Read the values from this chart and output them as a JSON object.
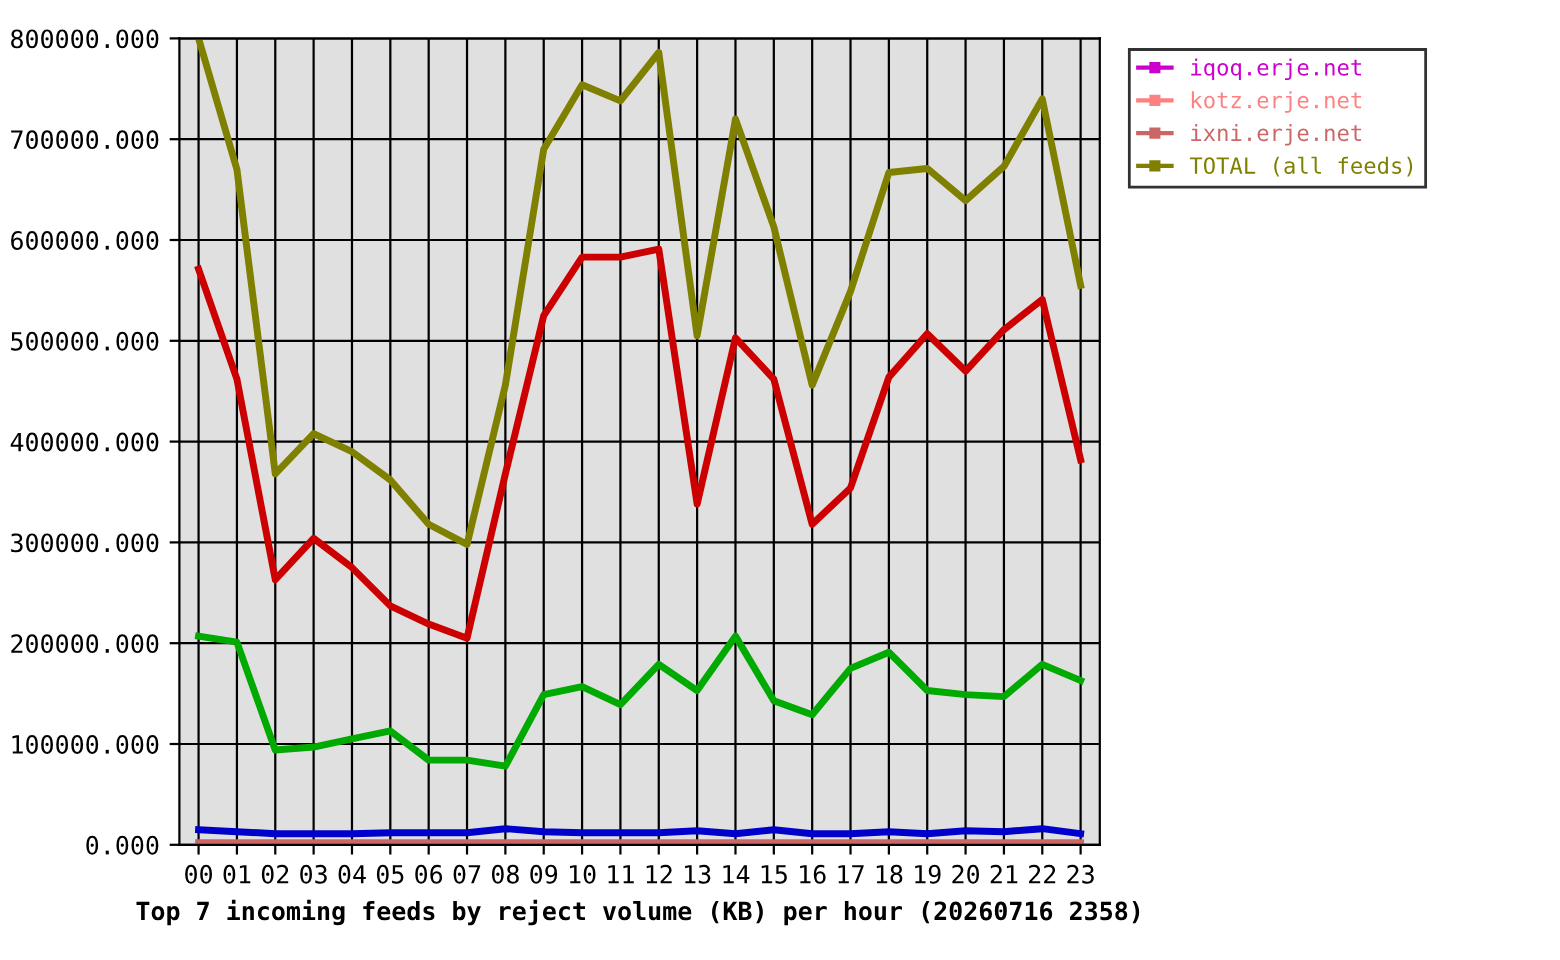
{
  "chart_data": {
    "type": "line",
    "xlabel": "Top 7 incoming feeds by reject volume (KB) per hour (20260716 2358)",
    "categories": [
      "00",
      "01",
      "02",
      "03",
      "04",
      "05",
      "06",
      "07",
      "08",
      "09",
      "10",
      "11",
      "12",
      "13",
      "14",
      "15",
      "16",
      "17",
      "18",
      "19",
      "20",
      "21",
      "22",
      "23"
    ],
    "series": [
      {
        "color": "#cc0000",
        "values": [
          571000,
          462000,
          263000,
          304000,
          275000,
          237000,
          219000,
          205000,
          368000,
          525000,
          583000,
          583000,
          591000,
          338000,
          503000,
          462000,
          318000,
          354000,
          464000,
          507000,
          470000,
          511000,
          541000,
          382000
        ]
      },
      {
        "color": "#00aa00",
        "values": [
          207000,
          201000,
          94000,
          97000,
          105000,
          113000,
          84000,
          84000,
          78000,
          149000,
          157000,
          139000,
          179000,
          153000,
          207000,
          143000,
          129000,
          175000,
          191000,
          153000,
          149000,
          147000,
          179000,
          163000
        ]
      },
      {
        "color": "#0000cc",
        "values": [
          15000,
          13000,
          11000,
          11000,
          11000,
          12000,
          12000,
          12000,
          16000,
          13000,
          12000,
          12000,
          12000,
          14000,
          11000,
          15000,
          11000,
          11000,
          13000,
          11000,
          14000,
          13000,
          16000,
          11000
        ]
      },
      {
        "name": "iqoq.erje.net",
        "color": "#cc00cc",
        "values": [
          null,
          null,
          null,
          null,
          null,
          null,
          null,
          null,
          null,
          null,
          null,
          null,
          null,
          null,
          null,
          null,
          null,
          null,
          null,
          null,
          null,
          null,
          null,
          null
        ]
      },
      {
        "name": "kotz.erje.net",
        "color": "#ff8080",
        "values": [
          null,
          null,
          null,
          null,
          null,
          null,
          null,
          null,
          null,
          null,
          null,
          null,
          null,
          null,
          null,
          null,
          null,
          null,
          null,
          null,
          null,
          null,
          null,
          null
        ]
      },
      {
        "color": "#ff8000",
        "values": [
          null,
          null,
          null,
          null,
          null,
          null,
          null,
          null,
          null,
          null,
          null,
          null,
          null,
          null,
          null,
          null,
          null,
          null,
          null,
          null,
          null,
          null,
          null,
          null
        ]
      },
      {
        "name": "ixni.erje.net",
        "color": "#cc6666",
        "values": [
          2000,
          2000,
          2000,
          2000,
          2000,
          2000,
          2000,
          2000,
          2000,
          2000,
          2000,
          2000,
          2000,
          2000,
          2000,
          2000,
          2000,
          2000,
          2000,
          2000,
          2000,
          2000,
          2000,
          2000
        ]
      },
      {
        "name": "TOTAL (all feeds)",
        "color": "#808000",
        "values": [
          800000,
          670000,
          368000,
          408000,
          390000,
          362000,
          318000,
          298000,
          456000,
          690000,
          754000,
          738000,
          786000,
          505000,
          720000,
          613000,
          456000,
          549000,
          667000,
          671000,
          639000,
          673000,
          740000,
          555000
        ]
      }
    ],
    "ylim": [
      0,
      800000
    ],
    "yticks": [
      {
        "value": 0,
        "label": "0.000"
      },
      {
        "value": 100000,
        "label": "100000.000"
      },
      {
        "value": 200000,
        "label": "200000.000"
      },
      {
        "value": 300000,
        "label": "300000.000"
      },
      {
        "value": 400000,
        "label": "400000.000"
      },
      {
        "value": 500000,
        "label": "500000.000"
      },
      {
        "value": 600000,
        "label": "600000.000"
      },
      {
        "value": 700000,
        "label": "700000.000"
      },
      {
        "value": 800000,
        "label": "800000.000"
      }
    ],
    "grid": true,
    "legend": "top right",
    "line_style": "solid"
  }
}
